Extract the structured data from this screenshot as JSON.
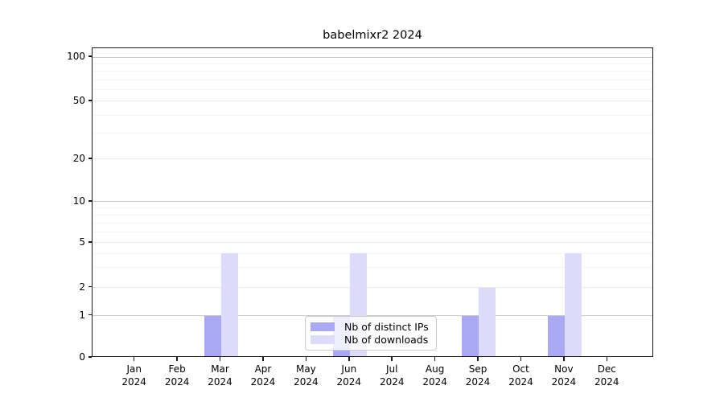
{
  "title": "babelmixr2 2024",
  "chart_data": {
    "type": "bar",
    "title": "babelmixr2 2024",
    "categories": [
      "Jan",
      "Feb",
      "Mar",
      "Apr",
      "May",
      "Jun",
      "Jul",
      "Aug",
      "Sep",
      "Oct",
      "Nov",
      "Dec"
    ],
    "year_label": "2024",
    "series": [
      {
        "name": "Nb of distinct IPs",
        "color": "#a9a9f6",
        "values": [
          0,
          0,
          1,
          0,
          0,
          1,
          0,
          0,
          1,
          0,
          1,
          0
        ]
      },
      {
        "name": "Nb of downloads",
        "color": "#dcdcfa",
        "values": [
          0,
          0,
          4,
          0,
          0,
          4,
          0,
          0,
          2,
          0,
          4,
          0
        ]
      }
    ],
    "y_axis": {
      "scale": "symlog",
      "range": [
        0,
        100
      ],
      "ticks": [
        0,
        1,
        2,
        5,
        10,
        20,
        50,
        100
      ],
      "minor_ticks": [
        3,
        4,
        6,
        7,
        8,
        9,
        30,
        40,
        60,
        70,
        80,
        90
      ]
    },
    "x_axis": {
      "label_format": "month over year"
    },
    "legend": {
      "position": "lower center"
    },
    "grid": true
  }
}
